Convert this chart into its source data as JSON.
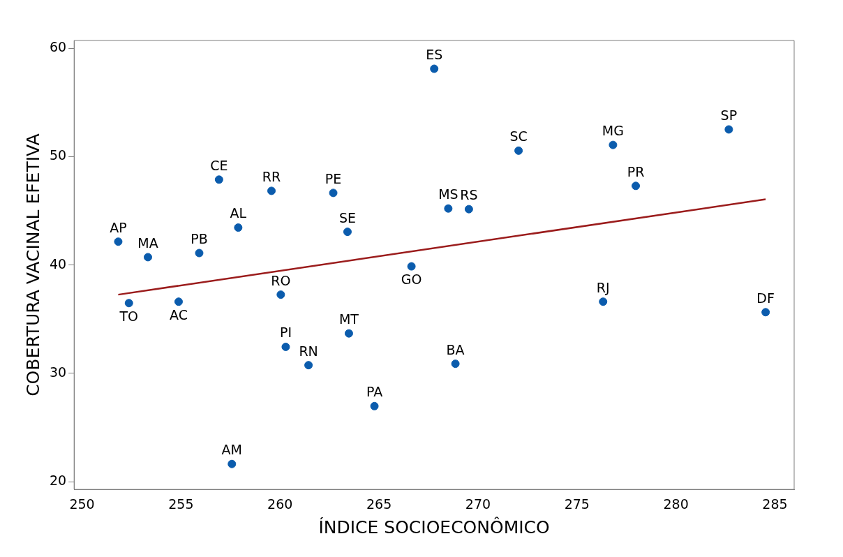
{
  "chart_data": {
    "type": "scatter",
    "xlabel": "ÍNDICE SOCIOECONÔMICO",
    "ylabel": "COBERTURA VACINAL EFETIVA",
    "x": [
      251.83,
      252.37,
      253.33,
      254.88,
      255.92,
      256.92,
      257.89,
      257.57,
      259.57,
      260.04,
      260.29,
      261.44,
      262.69,
      263.41,
      263.48,
      264.77,
      266.64,
      267.79,
      268.5,
      268.86,
      269.54,
      272.05,
      276.32,
      276.82,
      277.97,
      282.67,
      284.53
    ],
    "series": [
      {
        "color": "#0b5cad",
        "values": [
          42.15,
          36.48,
          40.72,
          36.61,
          41.1,
          47.88,
          43.45,
          21.63,
          46.84,
          37.26,
          32.44,
          30.75,
          46.65,
          43.06,
          33.68,
          26.97,
          39.87,
          58.11,
          45.21,
          30.88,
          45.15,
          50.55,
          36.61,
          51.08,
          47.3,
          52.51,
          35.64
        ]
      },
      {
        "type": "line",
        "marker": "none",
        "color": "#9b1c1c",
        "x": [
          251.83,
          284.53
        ],
        "values": [
          37.26,
          46.06
        ]
      }
    ],
    "annotations": [
      {
        "text": "AP",
        "x": 251.83,
        "y": 42.15
      },
      {
        "text": "TO",
        "x": 252.37,
        "y": 36.48
      },
      {
        "text": "MA",
        "x": 253.33,
        "y": 40.72
      },
      {
        "text": "AC",
        "x": 254.88,
        "y": 36.61
      },
      {
        "text": "PB",
        "x": 255.92,
        "y": 41.1
      },
      {
        "text": "CE",
        "x": 256.92,
        "y": 47.88
      },
      {
        "text": "AL",
        "x": 257.89,
        "y": 43.45
      },
      {
        "text": "AM",
        "x": 257.57,
        "y": 21.63
      },
      {
        "text": "RR",
        "x": 259.57,
        "y": 46.84
      },
      {
        "text": "RO",
        "x": 260.04,
        "y": 37.26
      },
      {
        "text": "PI",
        "x": 260.29,
        "y": 32.44
      },
      {
        "text": "RN",
        "x": 261.44,
        "y": 30.75
      },
      {
        "text": "PE",
        "x": 262.69,
        "y": 46.65
      },
      {
        "text": "SE",
        "x": 263.41,
        "y": 43.06
      },
      {
        "text": "MT",
        "x": 263.48,
        "y": 33.68
      },
      {
        "text": "PA",
        "x": 264.77,
        "y": 26.97
      },
      {
        "text": "GO",
        "x": 266.64,
        "y": 39.87
      },
      {
        "text": "ES",
        "x": 267.79,
        "y": 58.11
      },
      {
        "text": "MS",
        "x": 268.5,
        "y": 45.21
      },
      {
        "text": "BA",
        "x": 268.86,
        "y": 30.88
      },
      {
        "text": "RS",
        "x": 269.54,
        "y": 45.15
      },
      {
        "text": "SC",
        "x": 272.05,
        "y": 50.55
      },
      {
        "text": "RJ",
        "x": 276.32,
        "y": 36.61
      },
      {
        "text": "MG",
        "x": 276.82,
        "y": 51.08
      },
      {
        "text": "PR",
        "x": 277.97,
        "y": 47.3
      },
      {
        "text": "SP",
        "x": 282.67,
        "y": 52.51
      },
      {
        "text": "DF",
        "x": 284.53,
        "y": 35.64
      }
    ],
    "xlim": [
      249.6,
      285.97
    ],
    "xticks": [
      250,
      255,
      260,
      265,
      270,
      275,
      280,
      285
    ],
    "ylim": [
      19.28,
      60.72
    ],
    "yticks": [
      20,
      30,
      40,
      50,
      60
    ],
    "grid": false,
    "legend": false,
    "marker": "circle",
    "line_style": "solid"
  }
}
